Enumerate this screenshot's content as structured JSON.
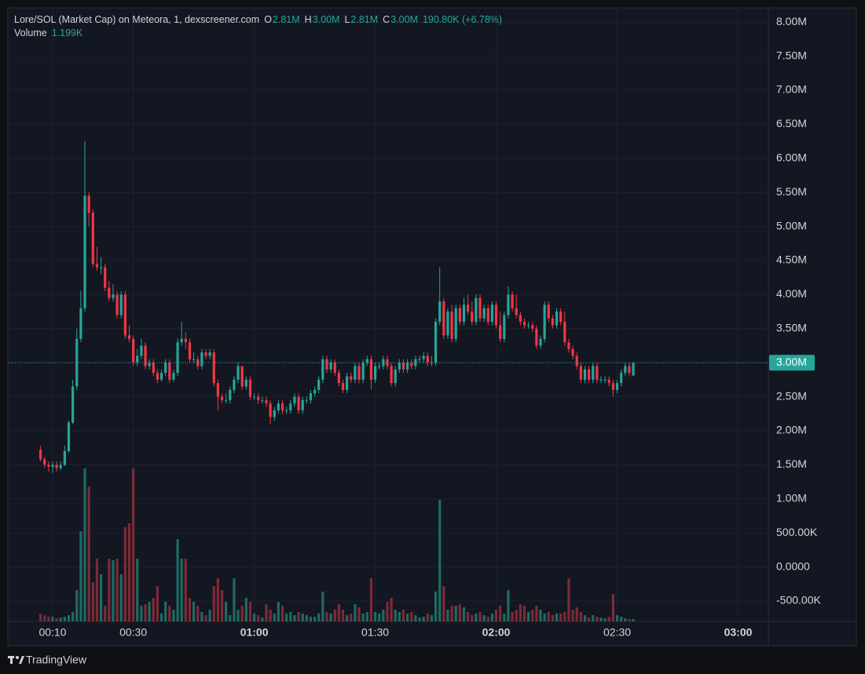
{
  "chart_data": {
    "type": "candlestick",
    "legend": {
      "symbol": "Lore/SOL (Market Cap) on Meteora, 1, dexscreener.com",
      "open_key": "O",
      "open": "2.81M",
      "high_key": "H",
      "high": "3.00M",
      "low_key": "L",
      "low": "2.81M",
      "close_key": "C",
      "close": "3.00M",
      "change": "190.80K (+6.78%)",
      "volume_key": "Volume",
      "volume": "1.199K"
    },
    "brand": "TradingView",
    "up_color": "#26a69a",
    "down_color": "#f23645",
    "up_volume_color": "#1f6b63",
    "down_volume_color": "#7e2a35",
    "xlim": [
      -1.1,
      187.5
    ],
    "xticks": [
      {
        "value": 10,
        "label": "00:10"
      },
      {
        "value": 30,
        "label": "00:30"
      },
      {
        "value": 60,
        "label": "01:00"
      },
      {
        "value": 90,
        "label": "01:30"
      },
      {
        "value": 120,
        "label": "02:00"
      },
      {
        "value": 150,
        "label": "02:30"
      },
      {
        "value": 180,
        "label": "03:00"
      }
    ],
    "ylim": [
      -0.8,
      8.21
    ],
    "yticks": [
      {
        "value": -0.5,
        "label": "-500.00K"
      },
      {
        "value": 0,
        "label": "0.0000"
      },
      {
        "value": 0.5,
        "label": "500.00K"
      },
      {
        "value": 1,
        "label": "1.00M"
      },
      {
        "value": 1.5,
        "label": "1.50M"
      },
      {
        "value": 2,
        "label": "2.00M"
      },
      {
        "value": 2.5,
        "label": "2.50M"
      },
      {
        "value": 3,
        "label": "3.00M"
      },
      {
        "value": 3.5,
        "label": "3.50M"
      },
      {
        "value": 4,
        "label": "4.00M"
      },
      {
        "value": 4.5,
        "label": "4.50M"
      },
      {
        "value": 5,
        "label": "5.00M"
      },
      {
        "value": 5.5,
        "label": "5.50M"
      },
      {
        "value": 6,
        "label": "6.00M"
      },
      {
        "value": 6.5,
        "label": "6.50M"
      },
      {
        "value": 7,
        "label": "7.00M"
      },
      {
        "value": 7.5,
        "label": "7.50M"
      },
      {
        "value": 8,
        "label": "8.00M"
      }
    ],
    "volume_ylim": [
      0,
      78
    ],
    "grid": true,
    "last_price": {
      "value": 3.0,
      "label": "3.00M"
    },
    "x": [
      7,
      8,
      9,
      10,
      11,
      12,
      13,
      14,
      15,
      16,
      17,
      18,
      19,
      20,
      21,
      22,
      23,
      24,
      25,
      26,
      27,
      28,
      29,
      30,
      31,
      32,
      33,
      34,
      35,
      36,
      37,
      38,
      39,
      40,
      41,
      42,
      43,
      44,
      45,
      46,
      47,
      48,
      49,
      50,
      51,
      52,
      53,
      54,
      55,
      56,
      57,
      58,
      59,
      60,
      61,
      62,
      63,
      64,
      65,
      66,
      67,
      68,
      69,
      70,
      71,
      72,
      73,
      74,
      75,
      76,
      77,
      78,
      79,
      80,
      81,
      82,
      83,
      84,
      85,
      86,
      87,
      88,
      89,
      90,
      91,
      92,
      93,
      94,
      95,
      96,
      97,
      98,
      99,
      100,
      101,
      102,
      103,
      104,
      105,
      106,
      107,
      108,
      109,
      110,
      111,
      112,
      113,
      114,
      115,
      116,
      117,
      118,
      119,
      120,
      121,
      122,
      123,
      124,
      125,
      126,
      127,
      128,
      129,
      130,
      131,
      132,
      133,
      134,
      135,
      136,
      137,
      138,
      139,
      140,
      141,
      142,
      143,
      144,
      145,
      146,
      147,
      148,
      149,
      150,
      151,
      152,
      153,
      154
    ],
    "open": [
      1.72,
      1.58,
      1.5,
      1.47,
      1.5,
      1.45,
      1.5,
      1.7,
      2.12,
      2.65,
      3.35,
      3.8,
      5.45,
      5.2,
      4.45,
      4.4,
      4.4,
      4.1,
      3.95,
      4.0,
      3.7,
      4.0,
      3.4,
      3.35,
      3.0,
      3.1,
      3.25,
      2.95,
      3.0,
      2.85,
      2.75,
      2.85,
      3.0,
      2.75,
      2.85,
      3.3,
      3.35,
      3.3,
      3.05,
      3.05,
      2.95,
      3.15,
      3.1,
      3.15,
      2.7,
      2.5,
      2.45,
      2.45,
      2.6,
      2.75,
      2.95,
      2.65,
      2.75,
      2.5,
      2.5,
      2.45,
      2.45,
      2.4,
      2.2,
      2.3,
      2.4,
      2.3,
      2.3,
      2.4,
      2.5,
      2.3,
      2.45,
      2.45,
      2.55,
      2.6,
      2.75,
      3.05,
      2.9,
      3.0,
      2.85,
      2.7,
      2.6,
      2.8,
      2.75,
      2.95,
      2.75,
      3.0,
      3.05,
      2.75,
      2.95,
      2.95,
      3.05,
      2.95,
      2.7,
      2.9,
      3.0,
      2.9,
      3.0,
      2.95,
      3.05,
      3.05,
      3.1,
      3.0,
      3.0,
      3.6,
      3.9,
      3.4,
      3.75,
      3.35,
      3.8,
      3.6,
      3.85,
      3.75,
      3.6,
      3.95,
      3.65,
      3.8,
      3.6,
      3.85,
      3.55,
      3.35,
      3.7,
      4.0,
      3.8,
      3.7,
      3.6,
      3.55,
      3.55,
      3.5,
      3.25,
      3.35,
      3.85,
      3.65,
      3.55,
      3.75,
      3.6,
      3.3,
      3.2,
      3.1,
      2.95,
      2.75,
      2.9,
      2.75,
      2.95,
      2.75,
      2.75,
      2.75,
      2.7,
      2.6,
      2.7,
      2.85,
      2.95,
      2.81
    ],
    "high": [
      1.78,
      1.62,
      1.55,
      1.55,
      1.55,
      1.55,
      1.78,
      2.15,
      2.75,
      3.5,
      4.05,
      6.25,
      5.5,
      5.25,
      4.7,
      4.55,
      4.45,
      4.2,
      4.15,
      4.05,
      4.05,
      4.05,
      3.55,
      3.4,
      3.2,
      3.35,
      3.3,
      3.05,
      3.05,
      2.9,
      2.9,
      3.05,
      3.05,
      2.9,
      3.35,
      3.6,
      3.45,
      3.35,
      3.15,
      3.1,
      3.2,
      3.2,
      3.2,
      3.2,
      2.75,
      2.55,
      2.55,
      2.65,
      2.8,
      3.0,
      2.95,
      2.8,
      2.8,
      2.55,
      2.55,
      2.5,
      2.5,
      2.45,
      2.35,
      2.45,
      2.45,
      2.35,
      2.45,
      2.55,
      2.55,
      2.5,
      2.5,
      2.6,
      2.65,
      2.8,
      3.1,
      3.1,
      3.05,
      3.05,
      2.9,
      2.75,
      2.85,
      2.85,
      3.0,
      3.0,
      3.05,
      3.1,
      3.1,
      3.0,
      3.0,
      3.1,
      3.1,
      3.0,
      2.95,
      3.05,
      3.05,
      3.05,
      3.05,
      3.1,
      3.1,
      3.15,
      3.15,
      3.1,
      3.65,
      4.4,
      3.95,
      3.8,
      3.85,
      3.85,
      3.85,
      3.95,
      4.0,
      3.9,
      4.0,
      4.0,
      3.85,
      3.85,
      3.9,
      3.9,
      3.75,
      3.75,
      4.12,
      4.05,
      4.0,
      3.75,
      3.65,
      3.6,
      3.6,
      3.55,
      3.4,
      3.9,
      3.9,
      3.7,
      3.8,
      3.8,
      3.75,
      3.35,
      3.25,
      3.15,
      3.0,
      2.95,
      2.95,
      3.0,
      3.0,
      2.8,
      2.8,
      2.8,
      2.75,
      2.75,
      2.9,
      3.0,
      3.0,
      3.0
    ],
    "low": [
      1.55,
      1.45,
      1.4,
      1.38,
      1.4,
      1.42,
      1.48,
      1.68,
      2.1,
      2.6,
      3.3,
      3.75,
      5.0,
      4.4,
      4.35,
      4.3,
      4.05,
      3.9,
      3.9,
      3.65,
      3.65,
      3.35,
      3.3,
      2.95,
      2.95,
      3.05,
      2.9,
      2.9,
      2.8,
      2.7,
      2.72,
      2.8,
      2.7,
      2.72,
      2.8,
      3.25,
      3.2,
      3.0,
      3.0,
      2.9,
      2.9,
      3.05,
      3.05,
      2.65,
      2.3,
      2.4,
      2.4,
      2.4,
      2.55,
      2.7,
      2.6,
      2.6,
      2.45,
      2.45,
      2.4,
      2.4,
      2.35,
      2.1,
      2.15,
      2.25,
      2.25,
      2.25,
      2.25,
      2.35,
      2.25,
      2.25,
      2.4,
      2.4,
      2.5,
      2.55,
      2.7,
      2.85,
      2.85,
      2.8,
      2.65,
      2.55,
      2.55,
      2.7,
      2.7,
      2.7,
      2.7,
      2.95,
      2.6,
      2.7,
      2.9,
      2.9,
      2.9,
      2.65,
      2.65,
      2.85,
      2.85,
      2.85,
      2.9,
      2.9,
      3.0,
      3.0,
      2.95,
      2.95,
      2.95,
      3.55,
      3.35,
      3.35,
      3.3,
      3.3,
      3.55,
      3.55,
      3.7,
      3.55,
      3.55,
      3.6,
      3.6,
      3.55,
      3.55,
      3.5,
      3.3,
      3.3,
      3.65,
      3.75,
      3.65,
      3.55,
      3.5,
      3.5,
      3.45,
      3.2,
      3.2,
      3.3,
      3.6,
      3.5,
      3.5,
      3.55,
      3.25,
      3.15,
      3.05,
      2.9,
      2.7,
      2.7,
      2.7,
      2.7,
      2.7,
      2.7,
      2.7,
      2.65,
      2.5,
      2.55,
      2.65,
      2.8,
      2.8,
      2.81
    ],
    "close": [
      1.58,
      1.5,
      1.47,
      1.5,
      1.45,
      1.5,
      1.7,
      2.12,
      2.65,
      3.35,
      3.8,
      5.45,
      5.2,
      4.45,
      4.4,
      4.4,
      4.1,
      3.95,
      4.0,
      3.7,
      4.0,
      3.4,
      3.35,
      3.0,
      3.1,
      3.25,
      2.95,
      3.0,
      2.85,
      2.75,
      2.85,
      3.0,
      2.75,
      2.85,
      3.3,
      3.35,
      3.3,
      3.05,
      3.05,
      2.95,
      3.15,
      3.1,
      3.15,
      2.7,
      2.5,
      2.45,
      2.45,
      2.6,
      2.75,
      2.95,
      2.65,
      2.75,
      2.5,
      2.5,
      2.45,
      2.45,
      2.4,
      2.2,
      2.3,
      2.4,
      2.3,
      2.3,
      2.4,
      2.5,
      2.3,
      2.45,
      2.45,
      2.55,
      2.6,
      2.75,
      3.05,
      2.9,
      3.0,
      2.85,
      2.7,
      2.6,
      2.8,
      2.75,
      2.95,
      2.75,
      3.0,
      3.05,
      2.75,
      2.95,
      2.95,
      3.05,
      2.95,
      2.7,
      2.9,
      3.0,
      2.9,
      3.0,
      2.95,
      3.05,
      3.05,
      3.1,
      3.0,
      3.0,
      3.6,
      3.9,
      3.4,
      3.75,
      3.35,
      3.8,
      3.6,
      3.85,
      3.75,
      3.6,
      3.95,
      3.65,
      3.8,
      3.6,
      3.85,
      3.55,
      3.35,
      3.7,
      4.0,
      3.8,
      3.7,
      3.6,
      3.55,
      3.55,
      3.5,
      3.25,
      3.35,
      3.85,
      3.65,
      3.55,
      3.75,
      3.6,
      3.3,
      3.2,
      3.1,
      2.95,
      2.75,
      2.9,
      2.75,
      2.95,
      2.75,
      2.75,
      2.75,
      2.7,
      2.6,
      2.7,
      2.85,
      2.95,
      2.85,
      3.0
    ],
    "volume": [
      4,
      3.2,
      2.4,
      2.4,
      1.6,
      2,
      2.4,
      3.2,
      4.8,
      16,
      46,
      78,
      68.8,
      20,
      32,
      24,
      8,
      32,
      31.2,
      32,
      24,
      48,
      50,
      78,
      32,
      8,
      8.8,
      10,
      12,
      18,
      4,
      10,
      8,
      6,
      42,
      32,
      32,
      12,
      10,
      8,
      4.8,
      3.2,
      6,
      18,
      22,
      16,
      10,
      3.2,
      22,
      6,
      8,
      12,
      10,
      4,
      3.2,
      2,
      8.8,
      6,
      4,
      10,
      8,
      4,
      4.8,
      3.2,
      4.8,
      4,
      3.2,
      2.4,
      2.4,
      4,
      15.2,
      4.8,
      4,
      6,
      8.8,
      6,
      3.2,
      4,
      8.8,
      7.2,
      4,
      4.8,
      22,
      4.8,
      4,
      6,
      10,
      12,
      6,
      4.8,
      6,
      4,
      4.8,
      3.2,
      2,
      2.4,
      4,
      3.2,
      15.2,
      62,
      18,
      6,
      8,
      8,
      8.8,
      7.2,
      4.8,
      3.2,
      4,
      4.8,
      3.2,
      2.4,
      4,
      6,
      8,
      4,
      16,
      4.8,
      6,
      8.8,
      8,
      4.8,
      6,
      8,
      6,
      4,
      4.8,
      3.2,
      4,
      4,
      4.8,
      22,
      6,
      7.2,
      4.8,
      3.2,
      2,
      3.2,
      2.4,
      2,
      1.6,
      2.4,
      14,
      3.2,
      2.4,
      1.6,
      1.2,
      1.199
    ]
  }
}
